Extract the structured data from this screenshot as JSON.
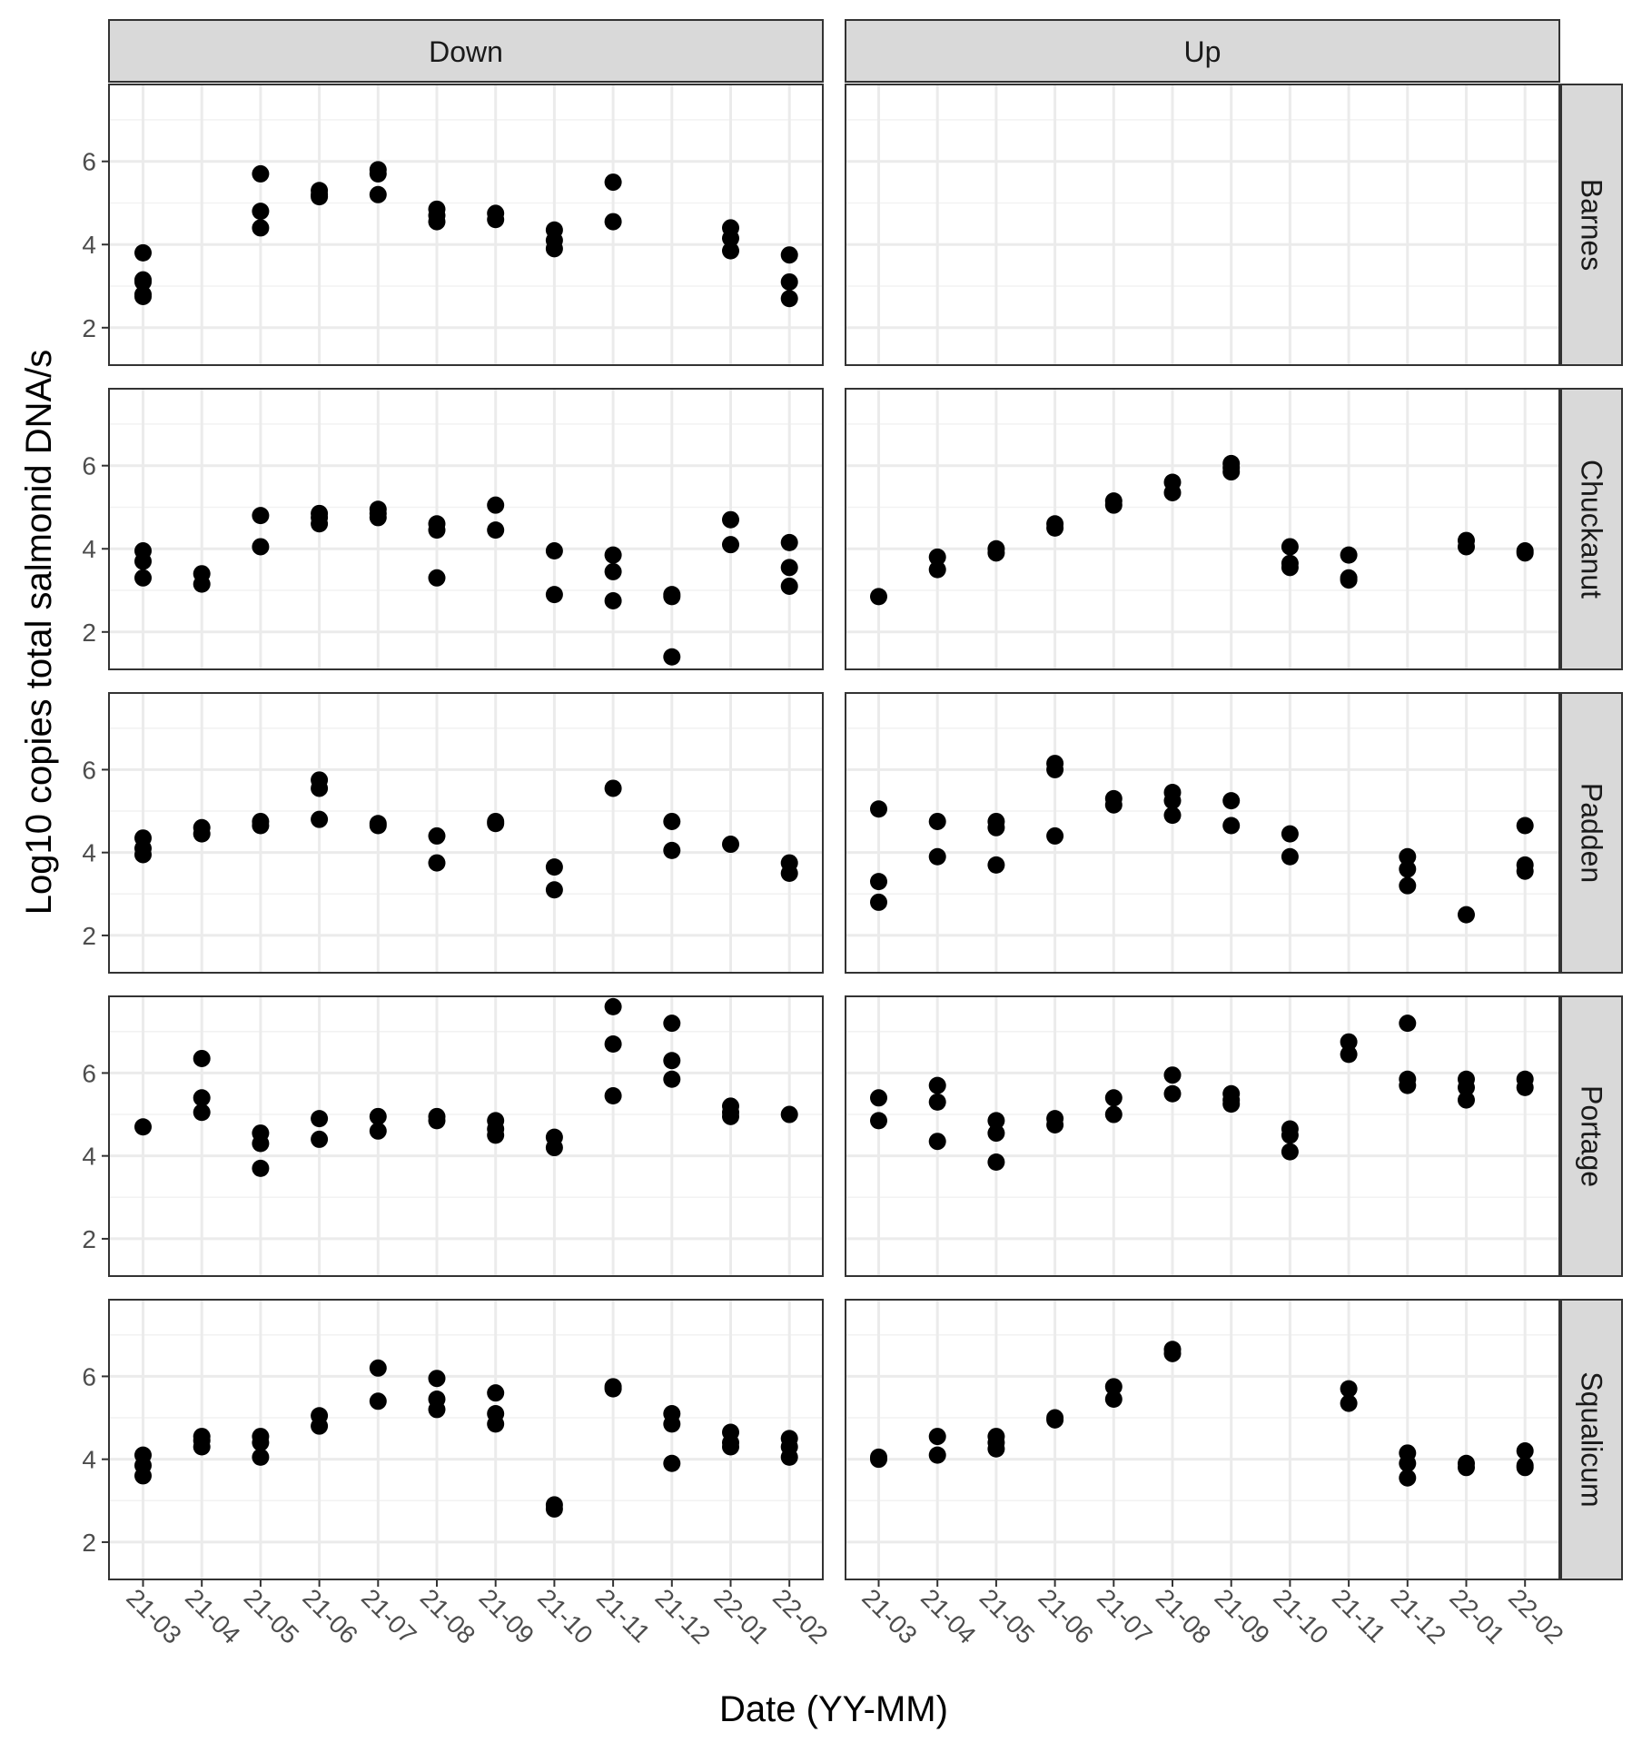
{
  "chart_data": {
    "type": "scatter",
    "title": "",
    "xlabel": "Date (YY-MM)",
    "ylabel": "Log10 copies total salmonid DNA/s",
    "x_categories": [
      "21-03",
      "21-04",
      "21-05",
      "21-06",
      "21-07",
      "21-08",
      "21-09",
      "21-10",
      "21-11",
      "21-12",
      "22-01",
      "22-02"
    ],
    "y_ticks": [
      2,
      4,
      6
    ],
    "ylim": [
      1.1,
      7.85
    ],
    "grid": true,
    "facet_columns": [
      "Down",
      "Up"
    ],
    "facet_rows": [
      "Barnes",
      "Chuckanut",
      "Padden",
      "Portage",
      "Squalicum"
    ],
    "point_color": "#000000",
    "panels": [
      {
        "row": "Barnes",
        "col": "Down",
        "points": [
          [
            "21-03",
            3.8
          ],
          [
            "21-03",
            3.15
          ],
          [
            "21-03",
            3.1
          ],
          [
            "21-03",
            2.8
          ],
          [
            "21-03",
            2.75
          ],
          [
            "21-05",
            5.7
          ],
          [
            "21-05",
            4.8
          ],
          [
            "21-05",
            4.4
          ],
          [
            "21-06",
            5.3
          ],
          [
            "21-06",
            5.2
          ],
          [
            "21-06",
            5.15
          ],
          [
            "21-07",
            5.8
          ],
          [
            "21-07",
            5.7
          ],
          [
            "21-07",
            5.2
          ],
          [
            "21-08",
            4.85
          ],
          [
            "21-08",
            4.7
          ],
          [
            "21-08",
            4.55
          ],
          [
            "21-09",
            4.75
          ],
          [
            "21-09",
            4.6
          ],
          [
            "21-10",
            4.35
          ],
          [
            "21-10",
            4.1
          ],
          [
            "21-10",
            3.9
          ],
          [
            "21-11",
            5.5
          ],
          [
            "21-11",
            4.55
          ],
          [
            "22-01",
            4.4
          ],
          [
            "22-01",
            4.15
          ],
          [
            "22-01",
            3.85
          ],
          [
            "22-02",
            3.75
          ],
          [
            "22-02",
            3.1
          ],
          [
            "22-02",
            2.7
          ]
        ]
      },
      {
        "row": "Barnes",
        "col": "Up",
        "points": []
      },
      {
        "row": "Chuckanut",
        "col": "Down",
        "points": [
          [
            "21-03",
            3.95
          ],
          [
            "21-03",
            3.7
          ],
          [
            "21-03",
            3.3
          ],
          [
            "21-04",
            3.4
          ],
          [
            "21-04",
            3.15
          ],
          [
            "21-05",
            4.8
          ],
          [
            "21-05",
            4.05
          ],
          [
            "21-06",
            4.85
          ],
          [
            "21-06",
            4.75
          ],
          [
            "21-06",
            4.6
          ],
          [
            "21-07",
            4.95
          ],
          [
            "21-07",
            4.85
          ],
          [
            "21-07",
            4.75
          ],
          [
            "21-08",
            4.6
          ],
          [
            "21-08",
            4.45
          ],
          [
            "21-08",
            3.3
          ],
          [
            "21-09",
            5.05
          ],
          [
            "21-09",
            4.45
          ],
          [
            "21-10",
            3.95
          ],
          [
            "21-10",
            2.9
          ],
          [
            "21-11",
            3.85
          ],
          [
            "21-11",
            3.45
          ],
          [
            "21-11",
            2.75
          ],
          [
            "21-12",
            2.9
          ],
          [
            "21-12",
            2.85
          ],
          [
            "21-12",
            1.4
          ],
          [
            "22-01",
            4.7
          ],
          [
            "22-01",
            4.1
          ],
          [
            "22-02",
            4.15
          ],
          [
            "22-02",
            3.55
          ],
          [
            "22-02",
            3.1
          ]
        ]
      },
      {
        "row": "Chuckanut",
        "col": "Up",
        "points": [
          [
            "21-03",
            2.85
          ],
          [
            "21-04",
            3.8
          ],
          [
            "21-04",
            3.5
          ],
          [
            "21-05",
            4.0
          ],
          [
            "21-05",
            3.9
          ],
          [
            "21-06",
            4.6
          ],
          [
            "21-06",
            4.5
          ],
          [
            "21-07",
            5.15
          ],
          [
            "21-07",
            5.05
          ],
          [
            "21-08",
            5.6
          ],
          [
            "21-08",
            5.35
          ],
          [
            "21-09",
            6.05
          ],
          [
            "21-09",
            5.95
          ],
          [
            "21-09",
            5.85
          ],
          [
            "21-10",
            4.05
          ],
          [
            "21-10",
            3.65
          ],
          [
            "21-10",
            3.55
          ],
          [
            "21-11",
            3.85
          ],
          [
            "21-11",
            3.3
          ],
          [
            "21-11",
            3.25
          ],
          [
            "22-01",
            4.2
          ],
          [
            "22-01",
            4.05
          ],
          [
            "22-02",
            3.95
          ],
          [
            "22-02",
            3.9
          ]
        ]
      },
      {
        "row": "Padden",
        "col": "Down",
        "points": [
          [
            "21-03",
            4.35
          ],
          [
            "21-03",
            4.1
          ],
          [
            "21-03",
            3.95
          ],
          [
            "21-04",
            4.6
          ],
          [
            "21-04",
            4.45
          ],
          [
            "21-05",
            4.75
          ],
          [
            "21-05",
            4.65
          ],
          [
            "21-06",
            5.75
          ],
          [
            "21-06",
            5.55
          ],
          [
            "21-06",
            4.8
          ],
          [
            "21-07",
            4.7
          ],
          [
            "21-07",
            4.65
          ],
          [
            "21-08",
            4.4
          ],
          [
            "21-08",
            3.75
          ],
          [
            "21-09",
            4.75
          ],
          [
            "21-09",
            4.7
          ],
          [
            "21-10",
            3.65
          ],
          [
            "21-10",
            3.1
          ],
          [
            "21-11",
            5.55
          ],
          [
            "21-12",
            4.75
          ],
          [
            "21-12",
            4.05
          ],
          [
            "22-01",
            4.2
          ],
          [
            "22-02",
            3.75
          ],
          [
            "22-02",
            3.5
          ]
        ]
      },
      {
        "row": "Padden",
        "col": "Up",
        "points": [
          [
            "21-03",
            5.05
          ],
          [
            "21-03",
            3.3
          ],
          [
            "21-03",
            2.8
          ],
          [
            "21-04",
            4.75
          ],
          [
            "21-04",
            3.9
          ],
          [
            "21-05",
            4.75
          ],
          [
            "21-05",
            4.6
          ],
          [
            "21-05",
            3.7
          ],
          [
            "21-06",
            6.15
          ],
          [
            "21-06",
            6.0
          ],
          [
            "21-06",
            4.4
          ],
          [
            "21-07",
            5.3
          ],
          [
            "21-07",
            5.15
          ],
          [
            "21-08",
            5.45
          ],
          [
            "21-08",
            5.25
          ],
          [
            "21-08",
            4.9
          ],
          [
            "21-09",
            5.25
          ],
          [
            "21-09",
            4.65
          ],
          [
            "21-10",
            4.45
          ],
          [
            "21-10",
            3.9
          ],
          [
            "21-12",
            3.9
          ],
          [
            "21-12",
            3.6
          ],
          [
            "21-12",
            3.2
          ],
          [
            "22-01",
            2.5
          ],
          [
            "22-02",
            4.65
          ],
          [
            "22-02",
            3.7
          ],
          [
            "22-02",
            3.55
          ]
        ]
      },
      {
        "row": "Portage",
        "col": "Down",
        "points": [
          [
            "21-03",
            4.7
          ],
          [
            "21-04",
            6.35
          ],
          [
            "21-04",
            5.4
          ],
          [
            "21-04",
            5.05
          ],
          [
            "21-05",
            4.55
          ],
          [
            "21-05",
            4.3
          ],
          [
            "21-05",
            3.7
          ],
          [
            "21-06",
            4.9
          ],
          [
            "21-06",
            4.4
          ],
          [
            "21-07",
            4.95
          ],
          [
            "21-07",
            4.6
          ],
          [
            "21-08",
            4.95
          ],
          [
            "21-08",
            4.85
          ],
          [
            "21-09",
            4.85
          ],
          [
            "21-09",
            4.65
          ],
          [
            "21-09",
            4.5
          ],
          [
            "21-10",
            4.45
          ],
          [
            "21-10",
            4.2
          ],
          [
            "21-11",
            7.6
          ],
          [
            "21-11",
            6.7
          ],
          [
            "21-11",
            5.45
          ],
          [
            "21-12",
            7.2
          ],
          [
            "21-12",
            6.3
          ],
          [
            "21-12",
            5.85
          ],
          [
            "22-01",
            5.2
          ],
          [
            "22-01",
            5.05
          ],
          [
            "22-01",
            4.95
          ],
          [
            "22-02",
            5.0
          ]
        ]
      },
      {
        "row": "Portage",
        "col": "Up",
        "points": [
          [
            "21-03",
            5.4
          ],
          [
            "21-03",
            4.85
          ],
          [
            "21-04",
            5.7
          ],
          [
            "21-04",
            5.3
          ],
          [
            "21-04",
            4.35
          ],
          [
            "21-05",
            4.85
          ],
          [
            "21-05",
            4.55
          ],
          [
            "21-05",
            3.85
          ],
          [
            "21-06",
            4.9
          ],
          [
            "21-06",
            4.75
          ],
          [
            "21-07",
            5.4
          ],
          [
            "21-07",
            5.0
          ],
          [
            "21-08",
            5.95
          ],
          [
            "21-08",
            5.5
          ],
          [
            "21-09",
            5.5
          ],
          [
            "21-09",
            5.35
          ],
          [
            "21-09",
            5.25
          ],
          [
            "21-10",
            4.65
          ],
          [
            "21-10",
            4.5
          ],
          [
            "21-10",
            4.1
          ],
          [
            "21-11",
            6.75
          ],
          [
            "21-11",
            6.45
          ],
          [
            "21-12",
            7.2
          ],
          [
            "21-12",
            5.85
          ],
          [
            "21-12",
            5.7
          ],
          [
            "22-01",
            5.85
          ],
          [
            "22-01",
            5.65
          ],
          [
            "22-01",
            5.35
          ],
          [
            "22-02",
            5.85
          ],
          [
            "22-02",
            5.65
          ]
        ]
      },
      {
        "row": "Squalicum",
        "col": "Down",
        "points": [
          [
            "21-03",
            4.1
          ],
          [
            "21-03",
            3.85
          ],
          [
            "21-03",
            3.6
          ],
          [
            "21-04",
            4.55
          ],
          [
            "21-04",
            4.45
          ],
          [
            "21-04",
            4.3
          ],
          [
            "21-05",
            4.55
          ],
          [
            "21-05",
            4.4
          ],
          [
            "21-05",
            4.05
          ],
          [
            "21-06",
            5.05
          ],
          [
            "21-06",
            4.8
          ],
          [
            "21-07",
            6.2
          ],
          [
            "21-07",
            5.4
          ],
          [
            "21-08",
            5.95
          ],
          [
            "21-08",
            5.45
          ],
          [
            "21-08",
            5.2
          ],
          [
            "21-09",
            5.6
          ],
          [
            "21-09",
            5.1
          ],
          [
            "21-09",
            4.85
          ],
          [
            "21-10",
            2.9
          ],
          [
            "21-10",
            2.8
          ],
          [
            "21-11",
            5.75
          ],
          [
            "21-11",
            5.7
          ],
          [
            "21-12",
            5.1
          ],
          [
            "21-12",
            4.85
          ],
          [
            "21-12",
            3.9
          ],
          [
            "22-01",
            4.65
          ],
          [
            "22-01",
            4.4
          ],
          [
            "22-01",
            4.3
          ],
          [
            "22-02",
            4.5
          ],
          [
            "22-02",
            4.3
          ],
          [
            "22-02",
            4.05
          ]
        ]
      },
      {
        "row": "Squalicum",
        "col": "Up",
        "points": [
          [
            "21-03",
            4.05
          ],
          [
            "21-03",
            4.0
          ],
          [
            "21-04",
            4.55
          ],
          [
            "21-04",
            4.1
          ],
          [
            "21-05",
            4.55
          ],
          [
            "21-05",
            4.4
          ],
          [
            "21-05",
            4.25
          ],
          [
            "21-06",
            5.0
          ],
          [
            "21-06",
            4.95
          ],
          [
            "21-07",
            5.75
          ],
          [
            "21-07",
            5.45
          ],
          [
            "21-08",
            6.65
          ],
          [
            "21-08",
            6.55
          ],
          [
            "21-11",
            5.7
          ],
          [
            "21-11",
            5.35
          ],
          [
            "21-12",
            4.15
          ],
          [
            "21-12",
            3.9
          ],
          [
            "21-12",
            3.55
          ],
          [
            "22-01",
            3.9
          ],
          [
            "22-01",
            3.8
          ],
          [
            "22-02",
            4.2
          ],
          [
            "22-02",
            3.85
          ],
          [
            "22-02",
            3.8
          ]
        ]
      }
    ]
  }
}
